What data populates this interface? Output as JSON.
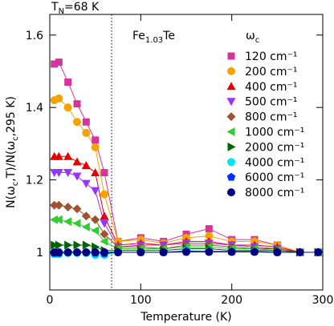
{
  "chart_data": {
    "type": "line",
    "annotation_parts": [
      {
        "text": "T"
      },
      {
        "text": "N",
        "sub": true
      },
      {
        "text": "=68 K"
      }
    ],
    "sample_parts": [
      {
        "text": "Fe"
      },
      {
        "text": "1.03",
        "sub": true
      },
      {
        "text": "Te"
      }
    ],
    "legend_title_parts": [
      {
        "text": "ω"
      },
      {
        "text": "c",
        "sub": true
      }
    ],
    "y_label_parts": [
      {
        "text": "N(ω"
      },
      {
        "text": "c",
        "sub": true
      },
      {
        "text": ",T)/N(ω"
      },
      {
        "text": "c",
        "sub": true
      },
      {
        "text": ",295 K)"
      }
    ],
    "x_label": "Temperature (K)",
    "x": [
      5,
      10,
      20,
      30,
      40,
      50,
      60,
      75,
      100,
      125,
      150,
      175,
      200,
      225,
      250,
      275,
      295
    ],
    "vline": 68,
    "xlim": [
      0,
      300
    ],
    "xticks": [
      0,
      100,
      200,
      300
    ],
    "ylim": [
      0.896,
      1.657
    ],
    "yticks": [
      1,
      1.2,
      1.4,
      1.6
    ],
    "series": [
      {
        "name": "120 cm⁻¹",
        "color": "#d6339c",
        "marker": "square",
        "values": [
          1.52,
          1.525,
          1.47,
          1.41,
          1.36,
          1.31,
          1.22,
          1.03,
          1.04,
          1.03,
          1.05,
          1.065,
          1.035,
          1.035,
          1.02,
          1.0,
          1.0
        ]
      },
      {
        "name": "200 cm⁻¹",
        "color": "#f5a300",
        "marker": "circle",
        "values": [
          1.42,
          1.425,
          1.4,
          1.36,
          1.33,
          1.29,
          1.16,
          1.03,
          1.035,
          1.025,
          1.04,
          1.045,
          1.03,
          1.03,
          1.02,
          1.0,
          1.0
        ]
      },
      {
        "name": "400 cm⁻¹",
        "color": "#e60000",
        "marker": "triangle-up",
        "values": [
          1.265,
          1.265,
          1.265,
          1.25,
          1.24,
          1.22,
          1.1,
          1.02,
          1.025,
          1.02,
          1.03,
          1.03,
          1.02,
          1.02,
          1.015,
          1.0,
          1.0
        ]
      },
      {
        "name": "500 cm⁻¹",
        "color": "#9933ff",
        "marker": "triangle-down",
        "values": [
          1.22,
          1.22,
          1.22,
          1.21,
          1.19,
          1.17,
          1.08,
          1.015,
          1.02,
          1.02,
          1.025,
          1.025,
          1.02,
          1.015,
          1.01,
          1.0,
          1.0
        ]
      },
      {
        "name": "800 cm⁻¹",
        "color": "#a0522d",
        "marker": "diamond",
        "values": [
          1.13,
          1.13,
          1.125,
          1.12,
          1.1,
          1.09,
          1.05,
          1.015,
          1.015,
          1.01,
          1.02,
          1.02,
          1.015,
          1.01,
          1.01,
          1.0,
          1.0
        ]
      },
      {
        "name": "1000 cm⁻¹",
        "color": "#33cc33",
        "marker": "triangle-left",
        "values": [
          1.09,
          1.09,
          1.085,
          1.08,
          1.07,
          1.06,
          1.03,
          1.01,
          1.01,
          1.01,
          1.015,
          1.015,
          1.01,
          1.01,
          1.005,
          1.0,
          1.0
        ]
      },
      {
        "name": "2000 cm⁻¹",
        "color": "#006400",
        "marker": "triangle-right",
        "values": [
          1.02,
          1.02,
          1.02,
          1.02,
          1.02,
          1.015,
          1.005,
          1.005,
          1.005,
          1.005,
          1.01,
          1.01,
          1.005,
          1.005,
          1.005,
          1.0,
          1.0
        ]
      },
      {
        "name": "4000 cm⁻¹",
        "color": "#00e5ee",
        "marker": "circle",
        "values": [
          0.995,
          0.995,
          0.998,
          0.998,
          0.998,
          0.993,
          0.993,
          1.0,
          1.0,
          1.0,
          1.005,
          1.003,
          1.003,
          1.003,
          1.0,
          1.0,
          1.0
        ]
      },
      {
        "name": "6000 cm⁻¹",
        "color": "#0033ff",
        "marker": "pentagon",
        "values": [
          0.998,
          0.998,
          1.0,
          1.0,
          1.0,
          0.998,
          0.997,
          1.0,
          1.0,
          1.0,
          1.003,
          1.002,
          1.002,
          1.002,
          1.0,
          1.0,
          1.0
        ]
      },
      {
        "name": "8000 cm⁻¹",
        "color": "#000080",
        "marker": "circle",
        "values": [
          1.0,
          1.0,
          1.0,
          1.0,
          1.0,
          1.0,
          1.0,
          1.0,
          1.0,
          1.0,
          1.001,
          1.001,
          1.001,
          1.001,
          1.0,
          1.0,
          1.0
        ]
      }
    ]
  }
}
